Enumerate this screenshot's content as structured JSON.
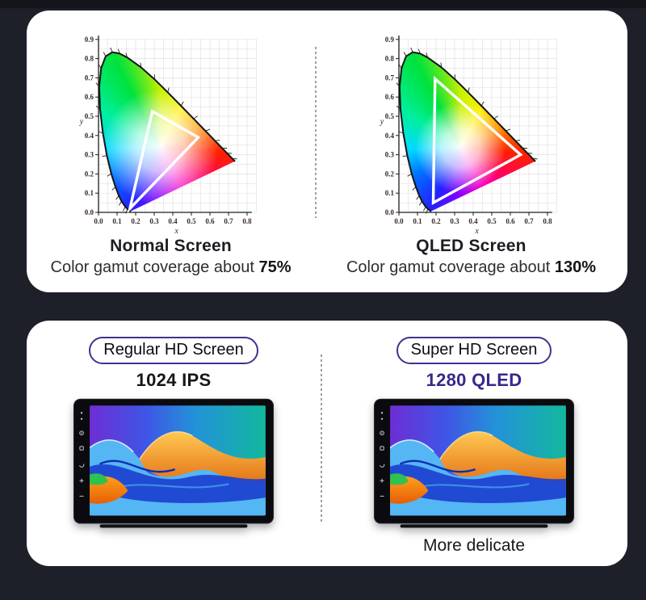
{
  "theme": {
    "accent": "#43318c",
    "background": "#1d1f29",
    "card": "#ffffff",
    "divider": "#9aa0a6"
  },
  "top_card": {
    "left_panel_name": "Normal Screen gamut panel",
    "right_panel_name": "QLED Screen gamut panel"
  },
  "bottom_card": {
    "left": {
      "badge": "Regular HD Screen",
      "spec": "1024 IPS",
      "spec_color": "#17171b"
    },
    "right": {
      "badge": "Super HD Screen",
      "spec": "1280 QLED",
      "spec_color": "#38288b",
      "note": "More delicate"
    }
  },
  "chart_data": [
    {
      "type": "chromaticity",
      "title": "Normal Screen",
      "caption_prefix": "Color gamut coverage about ",
      "coverage": "75%",
      "xlabel": "x",
      "ylabel": "y",
      "xlim": [
        0,
        0.8
      ],
      "ylim": [
        0,
        0.9
      ],
      "x_ticks": [
        0,
        0.1,
        0.2,
        0.3,
        0.4,
        0.5,
        0.6,
        0.7,
        0.8
      ],
      "y_ticks": [
        0,
        0.1,
        0.2,
        0.3,
        0.4,
        0.5,
        0.6,
        0.7,
        0.8,
        0.9
      ],
      "grid": true,
      "grid_step": 0.05,
      "gamut_triangle": [
        [
          0.29,
          0.525
        ],
        [
          0.537,
          0.39
        ],
        [
          0.169,
          0.02
        ]
      ],
      "white_radius": 72
    },
    {
      "type": "chromaticity",
      "title": "QLED Screen",
      "caption_prefix": "Color gamut coverage about ",
      "coverage": "130%",
      "xlabel": "x",
      "ylabel": "y",
      "xlim": [
        0,
        0.8
      ],
      "ylim": [
        0,
        0.9
      ],
      "x_ticks": [
        0,
        0.1,
        0.2,
        0.3,
        0.4,
        0.5,
        0.6,
        0.7,
        0.8
      ],
      "y_ticks": [
        0,
        0.1,
        0.2,
        0.3,
        0.4,
        0.5,
        0.6,
        0.7,
        0.8,
        0.9
      ],
      "grid": true,
      "grid_step": 0.05,
      "gamut_triangle": [
        [
          0.195,
          0.695
        ],
        [
          0.655,
          0.3
        ],
        [
          0.185,
          0.05
        ]
      ],
      "white_radius": 56
    }
  ],
  "cie_spectral_locus": [
    [
      0.1741,
      0.005
    ],
    [
      0.1689,
      0.0085
    ],
    [
      0.1566,
      0.0177
    ],
    [
      0.144,
      0.0297
    ],
    [
      0.1241,
      0.0578
    ],
    [
      0.1096,
      0.0868
    ],
    [
      0.0913,
      0.1327
    ],
    [
      0.0687,
      0.2007
    ],
    [
      0.0454,
      0.295
    ],
    [
      0.0235,
      0.4127
    ],
    [
      0.0082,
      0.5384
    ],
    [
      0.0039,
      0.6548
    ],
    [
      0.0139,
      0.7502
    ],
    [
      0.0389,
      0.812
    ],
    [
      0.0743,
      0.8338
    ],
    [
      0.1142,
      0.8262
    ],
    [
      0.1547,
      0.8059
    ],
    [
      0.2296,
      0.7543
    ],
    [
      0.3016,
      0.6923
    ],
    [
      0.3731,
      0.6245
    ],
    [
      0.4441,
      0.5547
    ],
    [
      0.5125,
      0.4866
    ],
    [
      0.5752,
      0.4242
    ],
    [
      0.627,
      0.3725
    ],
    [
      0.6658,
      0.334
    ],
    [
      0.6915,
      0.3083
    ],
    [
      0.719,
      0.2809
    ],
    [
      0.7347,
      0.2653
    ]
  ]
}
